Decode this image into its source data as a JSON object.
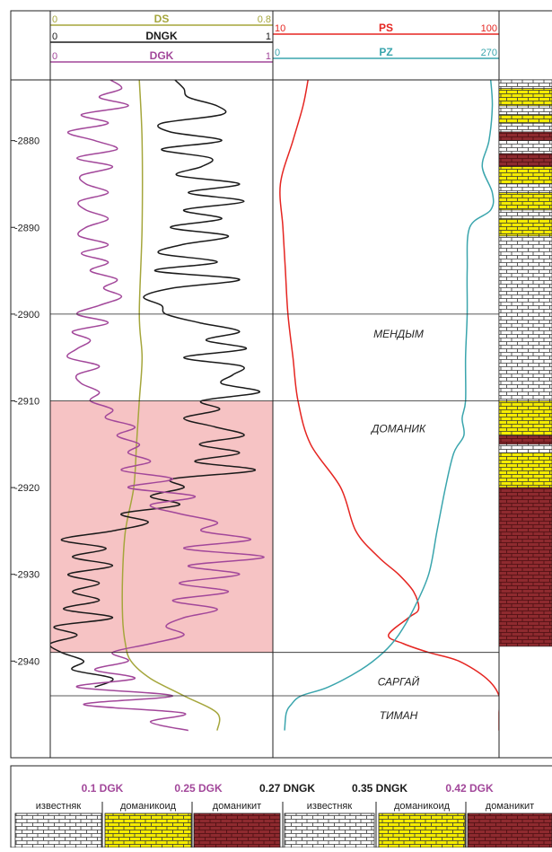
{
  "colors": {
    "ds": "#a5a63c",
    "dngk": "#1a1a1a",
    "dgk": "#a2479a",
    "ps": "#e52521",
    "pz": "#3aa5ad",
    "domanik_zone": "#f6c3c4",
    "limestone": "#ffffff",
    "domanikoid": "#f5ec00",
    "domanikit": "#8e2a2f"
  },
  "chart_data": {
    "type": "line",
    "title": "",
    "depth_axis": {
      "min": -2948,
      "max": -2873,
      "ticks": [
        -2880,
        -2890,
        -2900,
        -2910,
        -2920,
        -2930,
        -2940
      ],
      "tick_labels": [
        "-2880",
        "-2890",
        "-2900",
        "-2910",
        "-2920",
        "-2930",
        "-2940"
      ]
    },
    "tracks": [
      {
        "curves": [
          {
            "name": "DS",
            "min_label": "0",
            "max_label": "0.8",
            "min": 0,
            "max": 0.8,
            "color_key": "ds"
          },
          {
            "name": "DNGK",
            "min_label": "0",
            "max_label": "1",
            "min": 0,
            "max": 1,
            "color_key": "dngk"
          },
          {
            "name": "DGK",
            "min_label": "0",
            "max_label": "1",
            "min": 0,
            "max": 1,
            "color_key": "dgk"
          }
        ]
      },
      {
        "curves": [
          {
            "name": "PS",
            "min_label": "10",
            "max_label": "100",
            "min": 10,
            "max": 100,
            "color_key": "ps"
          },
          {
            "name": "PZ",
            "min_label": "0",
            "max_label": "270",
            "min": 0,
            "max": 270,
            "color_key": "pz"
          }
        ]
      }
    ],
    "series": [
      {
        "curve": "DS",
        "depth": [
          -2873,
          -2880,
          -2890,
          -2900,
          -2905,
          -2910,
          -2915,
          -2920,
          -2925,
          -2930,
          -2935,
          -2938,
          -2940,
          -2942,
          -2944,
          -2946,
          -2948
        ],
        "values": [
          0.32,
          0.33,
          0.33,
          0.32,
          0.33,
          0.32,
          0.31,
          0.3,
          0.27,
          0.26,
          0.26,
          0.27,
          0.29,
          0.36,
          0.48,
          0.6,
          0.6
        ]
      },
      {
        "curve": "DNGK",
        "depth": [
          -2873,
          -2874,
          -2875,
          -2876,
          -2877,
          -2878,
          -2879,
          -2880,
          -2881,
          -2882,
          -2883,
          -2884,
          -2885,
          -2886,
          -2887,
          -2888,
          -2889,
          -2890,
          -2891,
          -2892,
          -2893,
          -2894,
          -2895,
          -2896,
          -2897,
          -2898,
          -2899,
          -2900,
          -2901,
          -2902,
          -2903,
          -2904,
          -2905,
          -2906,
          -2907,
          -2908,
          -2909,
          -2910,
          -2911,
          -2912,
          -2913,
          -2914,
          -2915,
          -2916,
          -2917,
          -2918,
          -2919,
          -2920,
          -2921,
          -2922,
          -2923,
          -2924,
          -2925,
          -2926,
          -2927,
          -2928,
          -2929,
          -2930,
          -2931,
          -2932,
          -2933,
          -2934,
          -2935,
          -2936,
          -2937,
          -2938,
          -2939,
          -2940,
          -2941,
          -2942,
          -2943
        ],
        "values": [
          0.56,
          0.6,
          0.62,
          0.75,
          0.77,
          0.5,
          0.54,
          0.77,
          0.5,
          0.72,
          0.68,
          0.57,
          0.85,
          0.62,
          0.87,
          0.6,
          0.77,
          0.54,
          0.8,
          0.59,
          0.49,
          0.75,
          0.47,
          0.85,
          0.55,
          0.42,
          0.5,
          0.52,
          0.67,
          0.85,
          0.7,
          0.88,
          0.6,
          0.86,
          0.82,
          0.77,
          0.94,
          0.68,
          0.76,
          0.6,
          0.74,
          0.87,
          0.67,
          0.85,
          0.65,
          0.92,
          0.55,
          0.6,
          0.45,
          0.58,
          0.32,
          0.44,
          0.28,
          0.05,
          0.25,
          0.1,
          0.28,
          0.08,
          0.22,
          0.1,
          0.22,
          0.06,
          0.28,
          0.02,
          0.12,
          0.0,
          0.05,
          0.15,
          0.1,
          0.28,
          0.2
        ]
      },
      {
        "curve": "DGK",
        "depth": [
          -2873,
          -2874,
          -2875,
          -2876,
          -2877,
          -2878,
          -2879,
          -2880,
          -2881,
          -2882,
          -2883,
          -2884,
          -2885,
          -2886,
          -2887,
          -2888,
          -2889,
          -2890,
          -2891,
          -2892,
          -2893,
          -2894,
          -2895,
          -2896,
          -2897,
          -2898,
          -2899,
          -2900,
          -2901,
          -2902,
          -2903,
          -2904,
          -2905,
          -2906,
          -2907,
          -2908,
          -2909,
          -2910,
          -2911,
          -2912,
          -2913,
          -2914,
          -2915,
          -2916,
          -2917,
          -2918,
          -2919,
          -2920,
          -2921,
          -2922,
          -2923,
          -2924,
          -2925,
          -2926,
          -2927,
          -2928,
          -2929,
          -2930,
          -2931,
          -2932,
          -2933,
          -2934,
          -2935,
          -2936,
          -2937,
          -2938,
          -2939,
          -2940,
          -2941,
          -2942,
          -2943,
          -2944,
          -2945,
          -2946,
          -2947,
          -2948
        ],
        "values": [
          0.27,
          0.32,
          0.22,
          0.35,
          0.14,
          0.26,
          0.08,
          0.2,
          0.3,
          0.12,
          0.28,
          0.14,
          0.16,
          0.26,
          0.13,
          0.16,
          0.26,
          0.16,
          0.13,
          0.26,
          0.14,
          0.26,
          0.18,
          0.3,
          0.24,
          0.32,
          0.22,
          0.12,
          0.26,
          0.1,
          0.18,
          0.12,
          0.08,
          0.22,
          0.12,
          0.14,
          0.22,
          0.18,
          0.28,
          0.25,
          0.38,
          0.3,
          0.4,
          0.35,
          0.45,
          0.32,
          0.55,
          0.35,
          0.65,
          0.45,
          0.58,
          0.75,
          0.68,
          0.9,
          0.6,
          0.96,
          0.62,
          0.85,
          0.58,
          0.8,
          0.55,
          0.75,
          0.6,
          0.52,
          0.6,
          0.45,
          0.28,
          0.35,
          0.2,
          0.38,
          0.12,
          0.55,
          0.15,
          0.6,
          0.45,
          0.62
        ]
      },
      {
        "curve": "PS",
        "depth": [
          -2873,
          -2876,
          -2880,
          -2885,
          -2890,
          -2895,
          -2900,
          -2905,
          -2910,
          -2915,
          -2920,
          -2925,
          -2928,
          -2930,
          -2932,
          -2934,
          -2935,
          -2937,
          -2938,
          -2939,
          -2940,
          -2942,
          -2944,
          -2946,
          -2948
        ],
        "values": [
          24,
          22,
          18,
          13,
          14,
          15,
          16,
          18,
          20,
          25,
          37,
          43,
          52,
          60,
          66,
          68,
          64,
          56,
          62,
          72,
          84,
          95,
          100,
          100,
          100
        ]
      },
      {
        "curve": "PZ",
        "depth": [
          -2873,
          -2876,
          -2880,
          -2883,
          -2886,
          -2888,
          -2890,
          -2895,
          -2900,
          -2905,
          -2910,
          -2912,
          -2914,
          -2916,
          -2920,
          -2925,
          -2930,
          -2934,
          -2937,
          -2939,
          -2941,
          -2943,
          -2944,
          -2945,
          -2946,
          -2948
        ],
        "values": [
          260,
          262,
          258,
          250,
          262,
          260,
          235,
          232,
          232,
          230,
          230,
          226,
          228,
          216,
          206,
          196,
          186,
          168,
          150,
          132,
          105,
          66,
          34,
          22,
          16,
          14
        ]
      }
    ],
    "formations": [
      {
        "name": "МЕНДЫМ",
        "top": -2900,
        "bottom": -2910
      },
      {
        "name": "ДОМАНИК",
        "top": -2910,
        "bottom": -2939
      },
      {
        "name": "САРГАЙ",
        "top": -2939,
        "bottom": -2944
      },
      {
        "name": "ТИМАН",
        "top": -2944,
        "bottom": -2948
      }
    ],
    "lithology_column": [
      {
        "top": -2873,
        "bottom": -2874,
        "type": "limestone"
      },
      {
        "top": -2874,
        "bottom": -2876,
        "type": "domanikoid"
      },
      {
        "top": -2876,
        "bottom": -2877,
        "type": "limestone"
      },
      {
        "top": -2877,
        "bottom": -2878,
        "type": "domanikoid"
      },
      {
        "top": -2878,
        "bottom": -2879,
        "type": "limestone"
      },
      {
        "top": -2879,
        "bottom": -2880,
        "type": "domanikit"
      },
      {
        "top": -2880,
        "bottom": -2881.5,
        "type": "limestone"
      },
      {
        "top": -2881.5,
        "bottom": -2883,
        "type": "domanikit"
      },
      {
        "top": -2883,
        "bottom": -2885,
        "type": "domanikoid"
      },
      {
        "top": -2885,
        "bottom": -2886,
        "type": "limestone"
      },
      {
        "top": -2886,
        "bottom": -2888,
        "type": "domanikoid"
      },
      {
        "top": -2888,
        "bottom": -2889,
        "type": "limestone"
      },
      {
        "top": -2889,
        "bottom": -2891,
        "type": "domanikoid"
      },
      {
        "top": -2891,
        "bottom": -2910,
        "type": "limestone"
      },
      {
        "top": -2910,
        "bottom": -2914,
        "type": "domanikoid"
      },
      {
        "top": -2914,
        "bottom": -2915,
        "type": "domanikit"
      },
      {
        "top": -2915,
        "bottom": -2916,
        "type": "limestone"
      },
      {
        "top": -2916,
        "bottom": -2920,
        "type": "domanikoid"
      },
      {
        "top": -2920,
        "bottom": -2938.3,
        "type": "domanikit"
      }
    ],
    "legend": {
      "boundaries": [
        {
          "label": "0.1 DGK",
          "color_key": "dgk"
        },
        {
          "label": "0.25 DGK",
          "color_key": "dgk"
        },
        {
          "label": "0.27 DNGK",
          "color_key": "dngk"
        },
        {
          "label": "0.35 DNGK",
          "color_key": "dngk"
        },
        {
          "label": "0.42 DGK",
          "color_key": "dgk"
        }
      ],
      "items": [
        {
          "name": "известняк",
          "type": "limestone"
        },
        {
          "name": "доманикоид",
          "type": "domanikoid"
        },
        {
          "name": "доманикит",
          "type": "domanikit"
        },
        {
          "name": "известняк",
          "type": "limestone"
        },
        {
          "name": "доманикоид",
          "type": "domanikoid"
        },
        {
          "name": "доманикит",
          "type": "domanikit"
        }
      ]
    }
  }
}
